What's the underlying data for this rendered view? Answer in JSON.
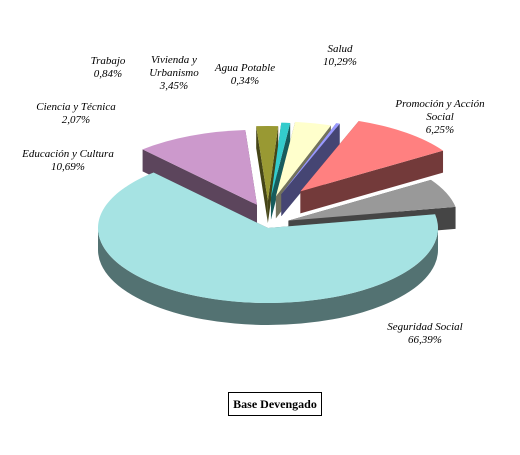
{
  "chart_data": {
    "type": "pie",
    "style": "3d-exploded",
    "unit": "%",
    "slices": [
      {
        "name": "Salud",
        "value": 10.29,
        "display": "10,29%",
        "color": "#ff8080",
        "label_lines": [
          "Salud",
          "10,29%"
        ]
      },
      {
        "name": "Promoción y Acción Social",
        "value": 6.25,
        "display": "6,25%",
        "color": "#999999",
        "label_lines": [
          "Promoción y Acción",
          "Social",
          "6,25%"
        ]
      },
      {
        "name": "Seguridad Social",
        "value": 66.39,
        "display": "66,39%",
        "color": "#a6e3e3",
        "label_lines": [
          "Seguridad Social",
          "66,39%"
        ]
      },
      {
        "name": "Educación y Cultura",
        "value": 10.69,
        "display": "10,69%",
        "color": "#cc99cc",
        "label_lines": [
          "Educación y Cultura",
          "10,69%"
        ]
      },
      {
        "name": "Ciencia y Técnica",
        "value": 2.07,
        "display": "2,07%",
        "color": "#999933",
        "label_lines": [
          "Ciencia y Técnica",
          "2,07%"
        ]
      },
      {
        "name": "Trabajo",
        "value": 0.84,
        "display": "0,84%",
        "color": "#33cccc",
        "label_lines": [
          "Trabajo",
          "0,84%"
        ]
      },
      {
        "name": "Vivienda y Urbanismo",
        "value": 3.45,
        "display": "3,45%",
        "color": "#ffffcc",
        "label_lines": [
          "Vivienda y",
          "Urbanismo",
          "3,45%"
        ]
      },
      {
        "name": "Agua Potable",
        "value": 0.34,
        "display": "0,34%",
        "color": "#9999ff",
        "label_lines": [
          "Agua Potable",
          "0,34%"
        ]
      }
    ]
  },
  "footer": {
    "label": "Base Devengado"
  }
}
